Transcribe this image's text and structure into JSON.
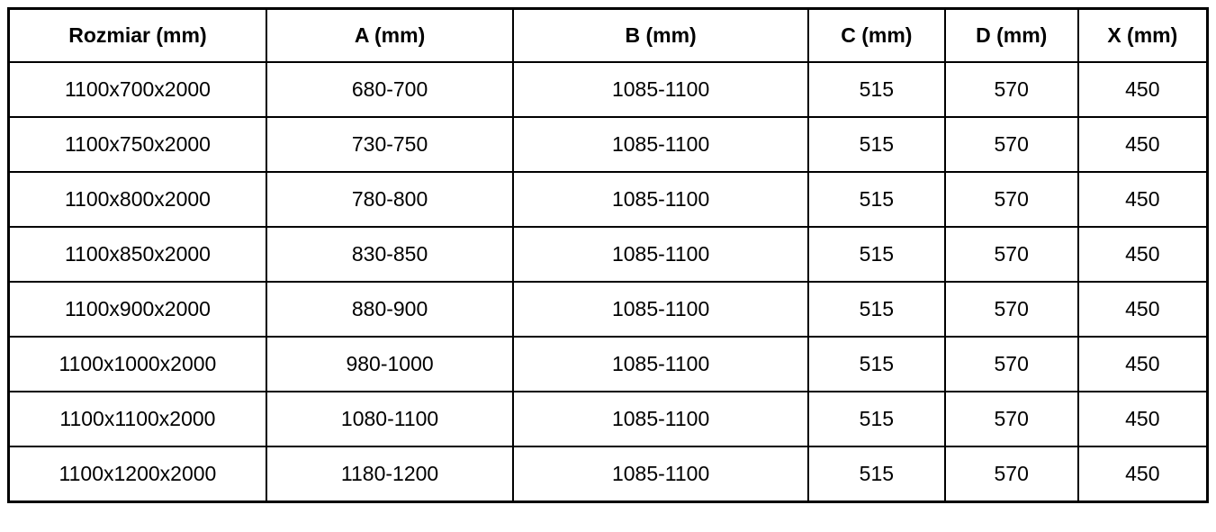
{
  "colors": {
    "border": "#000000",
    "background": "#ffffff",
    "text": "#000000"
  },
  "table": {
    "columns": [
      "Rozmiar (mm)",
      "A (mm)",
      "B (mm)",
      "C (mm)",
      "D (mm)",
      "X (mm)"
    ],
    "rows": [
      [
        "1100x700x2000",
        "680-700",
        "1085-1100",
        "515",
        "570",
        "450"
      ],
      [
        "1100x750x2000",
        "730-750",
        "1085-1100",
        "515",
        "570",
        "450"
      ],
      [
        "1100x800x2000",
        "780-800",
        "1085-1100",
        "515",
        "570",
        "450"
      ],
      [
        "1100x850x2000",
        "830-850",
        "1085-1100",
        "515",
        "570",
        "450"
      ],
      [
        "1100x900x2000",
        "880-900",
        "1085-1100",
        "515",
        "570",
        "450"
      ],
      [
        "1100x1000x2000",
        "980-1000",
        "1085-1100",
        "515",
        "570",
        "450"
      ],
      [
        "1100x1100x2000",
        "1080-1100",
        "1085-1100",
        "515",
        "570",
        "450"
      ],
      [
        "1100x1200x2000",
        "1180-1200",
        "1085-1100",
        "515",
        "570",
        "450"
      ]
    ]
  }
}
